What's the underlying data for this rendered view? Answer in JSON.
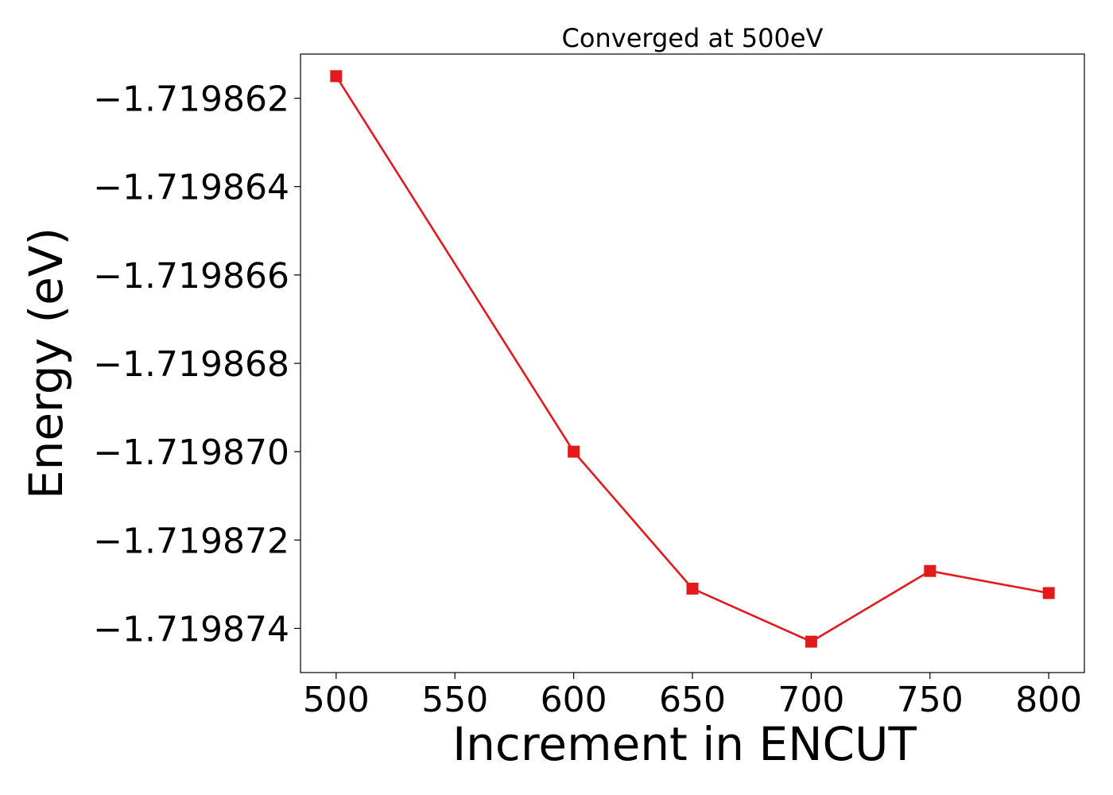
{
  "chart_data": {
    "type": "line",
    "title": "Converged at 500eV",
    "xlabel": "Increment in ENCUT",
    "ylabel": "Energy (eV)",
    "x": [
      500,
      600,
      650,
      700,
      750,
      800
    ],
    "series": [
      {
        "values": [
          -1.7198615,
          -1.71987,
          -1.7198731,
          -1.7198743,
          -1.7198727,
          -1.7198732
        ],
        "color": "#e31a1c",
        "marker": "square"
      }
    ],
    "xlim": [
      485,
      815
    ],
    "ylim": [
      -1.719875,
      -1.719861
    ],
    "xticks": [
      500,
      550,
      600,
      650,
      700,
      750,
      800
    ],
    "xtick_labels": [
      "500",
      "550",
      "600",
      "650",
      "700",
      "750",
      "800"
    ],
    "yticks": [
      -1.719862,
      -1.719864,
      -1.719866,
      -1.719868,
      -1.71987,
      -1.719872,
      -1.719874
    ],
    "ytick_labels": [
      "−1.719862",
      "−1.719864",
      "−1.719866",
      "−1.719868",
      "−1.719870",
      "−1.719872",
      "−1.719874"
    ],
    "grid": false,
    "legend": false
  }
}
